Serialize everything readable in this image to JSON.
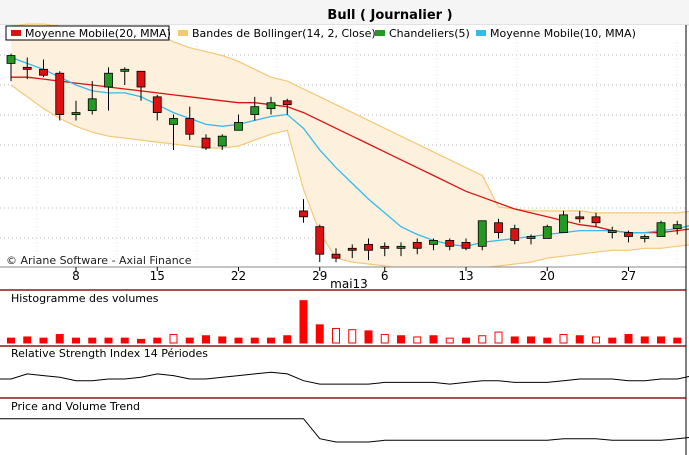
{
  "title": "Bull  ( Journalier )",
  "watermark": "© Ariane Software - Axial Finance",
  "month_label": "mai13",
  "colors": {
    "up": "#229922",
    "down": "#dd1111",
    "ma20": "#dd1111",
    "ma10": "#33bbee",
    "boll_fill": "#fdf0dc",
    "boll_line": "#f5c877",
    "vol": "#ff0000",
    "osc": "#000000"
  },
  "legend": [
    {
      "label": "Moyenne Mobile(20, MMA)",
      "color": "#dd1111",
      "icon": "red-line-swatch"
    },
    {
      "label": "Bandes de Bollinger(14, 2, Close)",
      "color": "#f5c877",
      "icon": "orange-band-swatch"
    },
    {
      "label": "Chandeliers(5)",
      "color": "#229922",
      "icon": "candle-swatch"
    },
    {
      "label": "Moyenne Mobile(10, MMA)",
      "color": "#33bbee",
      "icon": "blue-line-swatch"
    }
  ],
  "panels": [
    {
      "id": "volume",
      "label": "Histogramme des volumes"
    },
    {
      "id": "rsi",
      "label": "Relative Strength Index 14 Périodes"
    },
    {
      "id": "pvt",
      "label": "Price and Volume Trend"
    }
  ],
  "chart_data": [
    {
      "type": "candlestick",
      "title": "Bull  ( Journalier )",
      "x_tick_labels": [
        {
          "label": "8",
          "at": 4
        },
        {
          "label": "15",
          "at": 9
        },
        {
          "label": "22",
          "at": 14
        },
        {
          "label": "29",
          "at": 19
        },
        {
          "label": "6",
          "at": 23
        },
        {
          "label": "13",
          "at": 28
        },
        {
          "label": "20",
          "at": 33
        },
        {
          "label": "27",
          "at": 38
        }
      ],
      "candles": [
        {
          "o": 89,
          "h": 94,
          "l": 80,
          "c": 93
        },
        {
          "o": 87,
          "h": 92,
          "l": 81,
          "c": 86
        },
        {
          "o": 86,
          "h": 91,
          "l": 82,
          "c": 83
        },
        {
          "o": 84,
          "h": 85,
          "l": 60,
          "c": 63
        },
        {
          "o": 63,
          "h": 70,
          "l": 60,
          "c": 64
        },
        {
          "o": 65,
          "h": 80,
          "l": 63,
          "c": 71
        },
        {
          "o": 77,
          "h": 87,
          "l": 65,
          "c": 84
        },
        {
          "o": 85,
          "h": 87,
          "l": 78,
          "c": 86
        },
        {
          "o": 85,
          "h": 85,
          "l": 70,
          "c": 77
        },
        {
          "o": 72,
          "h": 73,
          "l": 60,
          "c": 64
        },
        {
          "o": 58,
          "h": 63,
          "l": 45,
          "c": 61
        },
        {
          "o": 61,
          "h": 67,
          "l": 50,
          "c": 53
        },
        {
          "o": 51,
          "h": 53,
          "l": 45,
          "c": 46
        },
        {
          "o": 47,
          "h": 53,
          "l": 45,
          "c": 52
        },
        {
          "o": 55,
          "h": 63,
          "l": 55,
          "c": 59
        },
        {
          "o": 63,
          "h": 72,
          "l": 60,
          "c": 67
        },
        {
          "o": 66,
          "h": 72,
          "l": 63,
          "c": 69
        },
        {
          "o": 70,
          "h": 71,
          "l": 63,
          "c": 68
        },
        {
          "o": 14,
          "h": 20,
          "l": 8,
          "c": 11
        },
        {
          "o": 6,
          "h": 7,
          "l": -12,
          "c": -8
        },
        {
          "o": -8,
          "h": -5,
          "l": -12,
          "c": -10
        },
        {
          "o": -5,
          "h": -3,
          "l": -10,
          "c": -6
        },
        {
          "o": -3,
          "h": 0,
          "l": -11,
          "c": -6
        },
        {
          "o": -4,
          "h": -2,
          "l": -9,
          "c": -5
        },
        {
          "o": -5,
          "h": -2,
          "l": -9,
          "c": -4
        },
        {
          "o": -2,
          "h": 0,
          "l": -8,
          "c": -5
        },
        {
          "o": -3,
          "h": 0,
          "l": -6,
          "c": -1
        },
        {
          "o": -1,
          "h": 0,
          "l": -6,
          "c": -4
        },
        {
          "o": -2,
          "h": 0,
          "l": -6,
          "c": -5
        },
        {
          "o": -4,
          "h": 9,
          "l": -6,
          "c": 9
        },
        {
          "o": 8,
          "h": 10,
          "l": 0,
          "c": 3
        },
        {
          "o": 5,
          "h": 7,
          "l": -3,
          "c": -1
        },
        {
          "o": 0,
          "h": 2,
          "l": -3,
          "c": 1
        },
        {
          "o": 0,
          "h": 7,
          "l": 0,
          "c": 6
        },
        {
          "o": 3,
          "h": 14,
          "l": 3,
          "c": 12
        },
        {
          "o": 11,
          "h": 14,
          "l": 8,
          "c": 10
        },
        {
          "o": 11,
          "h": 13,
          "l": 6,
          "c": 8
        },
        {
          "o": 3,
          "h": 6,
          "l": 0,
          "c": 4
        },
        {
          "o": 3,
          "h": 4,
          "l": -2,
          "c": 1
        },
        {
          "o": 0,
          "h": 2,
          "l": -2,
          "c": 1
        },
        {
          "o": 1,
          "h": 9,
          "l": 1,
          "c": 8
        },
        {
          "o": 5,
          "h": 9,
          "l": 2,
          "c": 7
        },
        {
          "o": 6,
          "h": 16,
          "l": 4,
          "c": 13
        }
      ],
      "ma20": [
        82,
        82,
        81,
        80,
        79,
        78,
        77,
        76,
        75,
        74,
        73,
        72,
        71,
        70,
        69,
        69,
        68,
        67,
        64,
        60,
        56,
        52,
        48,
        44,
        40,
        36,
        32,
        28,
        24,
        21,
        18,
        15,
        13,
        11,
        9,
        7,
        6,
        4,
        3,
        3,
        3,
        4,
        5
      ],
      "ma10": [
        92,
        89,
        86,
        82,
        78,
        75,
        74,
        74,
        72,
        68,
        64,
        61,
        58,
        57,
        58,
        60,
        62,
        63,
        56,
        45,
        36,
        28,
        20,
        13,
        6,
        2,
        -1,
        -3,
        -4,
        -2,
        -1,
        0,
        1,
        2,
        3,
        4,
        4,
        4,
        3,
        3,
        4,
        5,
        7
      ],
      "boll_upper": [
        108,
        109,
        109,
        108,
        107,
        106,
        106,
        106,
        105,
        104,
        100,
        97,
        95,
        93,
        90,
        86,
        82,
        80,
        76,
        72,
        68,
        64,
        60,
        56,
        52,
        48,
        44,
        40,
        36,
        32,
        16,
        15,
        14,
        14,
        14,
        14,
        13,
        13,
        13,
        13,
        13,
        13,
        14
      ],
      "boll_lower": [
        78,
        72,
        66,
        61,
        57,
        54,
        52,
        51,
        50,
        49,
        48,
        47,
        46,
        46,
        47,
        50,
        53,
        55,
        25,
        3,
        -10,
        -12,
        -13,
        -14,
        -15,
        -15,
        -15,
        -15,
        -15,
        -15,
        -14,
        -13,
        -12,
        -10,
        -9,
        -8,
        -7,
        -6,
        -6,
        -5,
        -5,
        -4,
        -3
      ],
      "ylim": [
        -14,
        107
      ]
    },
    {
      "type": "bar",
      "title": "Histogramme des volumes",
      "values": [
        4,
        5,
        4,
        7,
        4,
        4,
        4,
        4,
        3,
        4,
        7,
        4,
        6,
        5,
        4,
        4,
        4,
        6,
        35,
        15,
        12,
        11,
        10,
        7,
        6,
        5,
        6,
        4,
        4,
        6,
        9,
        5,
        5,
        4,
        7,
        6,
        5,
        4,
        7,
        5,
        5,
        4,
        8
      ],
      "hollow": [
        false,
        false,
        false,
        false,
        false,
        false,
        false,
        false,
        false,
        false,
        true,
        false,
        false,
        false,
        false,
        false,
        false,
        false,
        false,
        false,
        true,
        true,
        false,
        true,
        false,
        true,
        false,
        true,
        false,
        true,
        true,
        false,
        false,
        false,
        true,
        false,
        true,
        false,
        false,
        false,
        false,
        false,
        true
      ],
      "ylim": [
        0,
        38
      ]
    },
    {
      "type": "line",
      "title": "Relative Strength Index 14 Périodes",
      "values": [
        50,
        53,
        52,
        51,
        49,
        49,
        50,
        50,
        51,
        53,
        52,
        50,
        50,
        51,
        52,
        53,
        54,
        53,
        49,
        47,
        47,
        47,
        47,
        48,
        48,
        48,
        48,
        47,
        48,
        49,
        49,
        48,
        48,
        48,
        49,
        50,
        50,
        50,
        49,
        49,
        50,
        50,
        52
      ],
      "ylim": [
        40,
        60
      ]
    },
    {
      "type": "line",
      "title": "Price and Volume Trend",
      "values": [
        100,
        100,
        100,
        100,
        100,
        100,
        100,
        100,
        100,
        100,
        100,
        100,
        100,
        100,
        100,
        100,
        100,
        100,
        100,
        88,
        86,
        86,
        86,
        87,
        87,
        87,
        87,
        87,
        87,
        87,
        87,
        87,
        87,
        87,
        88,
        88,
        88,
        87,
        87,
        87,
        87,
        88,
        89
      ],
      "ylim": [
        80,
        104
      ]
    }
  ]
}
